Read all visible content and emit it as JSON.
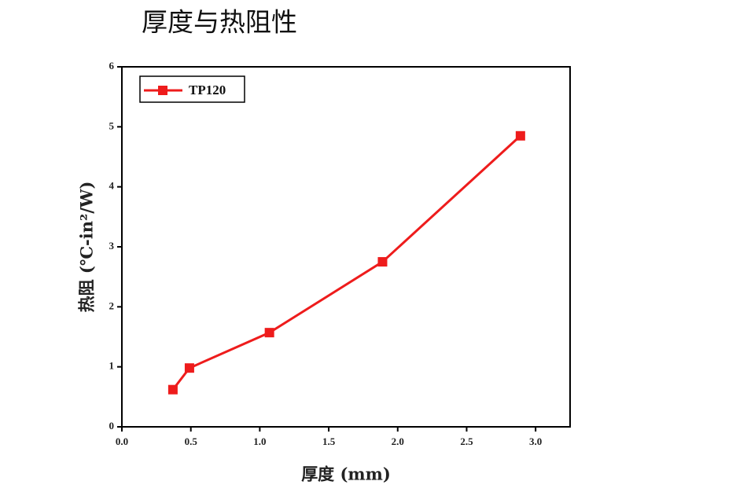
{
  "chart_data": {
    "type": "line",
    "title": "厚度与热阻性",
    "x_label": "厚度 (mm)",
    "y_label": "热阻 (℃-in²/W)",
    "x": [
      0.37,
      0.49,
      1.07,
      1.89,
      2.89
    ],
    "series": [
      {
        "name": "TP120",
        "color": "#ee1c1c",
        "values": [
          0.62,
          0.98,
          1.57,
          2.75,
          4.85
        ]
      }
    ],
    "xlim": [
      0,
      3.25
    ],
    "xticks": [
      {
        "value": 0,
        "label": "0.0"
      },
      0.5,
      {
        "value": 1,
        "label": "1.0"
      },
      1.5,
      {
        "value": 2,
        "label": "2.0"
      },
      2.5,
      {
        "value": 3,
        "label": "3.0"
      }
    ],
    "ylim": [
      0,
      6
    ],
    "yticks": [
      0,
      1,
      2,
      3,
      4,
      5,
      6
    ],
    "legend": "top-left"
  }
}
